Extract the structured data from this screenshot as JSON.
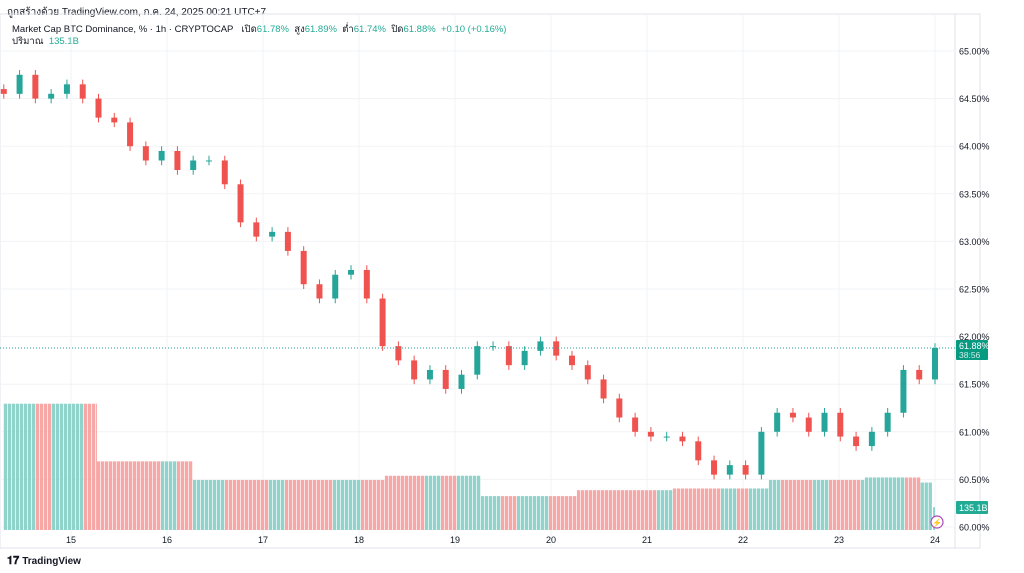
{
  "credit": "ถูกสร้างด้วย TradingView.com, ก.ค. 24, 2025 00:21 UTC+7",
  "legend": {
    "symbol": "Market Cap BTC Dominance, % · 1h · CRYPTOCAP",
    "open_label": "เปิด",
    "open": "61.78%",
    "high_label": "สูง",
    "high": "61.89%",
    "low_label": "ต่ำ",
    "low": "61.74%",
    "close_label": "ปิด",
    "close": "61.88%",
    "change": "+0.10 (+0.16%)"
  },
  "volume": {
    "label": "ปริมาณ",
    "value": "135.1B"
  },
  "price_badge": {
    "price": "61.88%",
    "countdown": "38:56"
  },
  "volume_badge": "135.1B",
  "logo": "TradingView",
  "colors": {
    "up": "#26a69a",
    "down": "#ef5350",
    "vol_up": "#8fd3cb",
    "vol_down": "#f7a8a6",
    "badge": "#089981"
  },
  "chart_data": {
    "type": "candlestick",
    "title": "Market Cap BTC Dominance, %",
    "ylim": [
      60.0,
      65.0
    ],
    "yticks": [
      "65.00%",
      "64.50%",
      "64.00%",
      "63.50%",
      "63.00%",
      "62.50%",
      "62.00%",
      "61.50%",
      "61.00%",
      "60.50%",
      "60.00%"
    ],
    "xticks": [
      "15",
      "16",
      "17",
      "18",
      "19",
      "20",
      "21",
      "22",
      "23",
      "24"
    ],
    "x_range_days": [
      14.3,
      24.0
    ],
    "closes": [
      64.55,
      64.75,
      64.5,
      64.55,
      64.65,
      64.5,
      64.3,
      64.25,
      64.0,
      63.85,
      63.95,
      63.75,
      63.85,
      63.85,
      63.6,
      63.2,
      63.05,
      63.1,
      62.9,
      62.55,
      62.4,
      62.65,
      62.7,
      62.4,
      61.9,
      61.75,
      61.55,
      61.65,
      61.45,
      61.6,
      61.9,
      61.9,
      61.7,
      61.85,
      61.95,
      61.8,
      61.7,
      61.55,
      61.35,
      61.15,
      61.0,
      60.95,
      60.95,
      60.9,
      60.7,
      60.55,
      60.65,
      60.55,
      61.0,
      61.2,
      61.15,
      61.0,
      61.2,
      60.95,
      60.85,
      61.0,
      61.2,
      61.65,
      61.55,
      61.88
    ],
    "volume_segments_B": [
      745,
      405,
      295,
      320,
      200,
      235,
      245,
      295,
      310,
      280,
      135.1
    ],
    "volume_segment_ends_day": [
      15.27,
      16.27,
      18.27,
      19.27,
      20.27,
      21.27,
      22.27,
      23.27,
      23.85,
      23.98,
      24.0
    ]
  }
}
